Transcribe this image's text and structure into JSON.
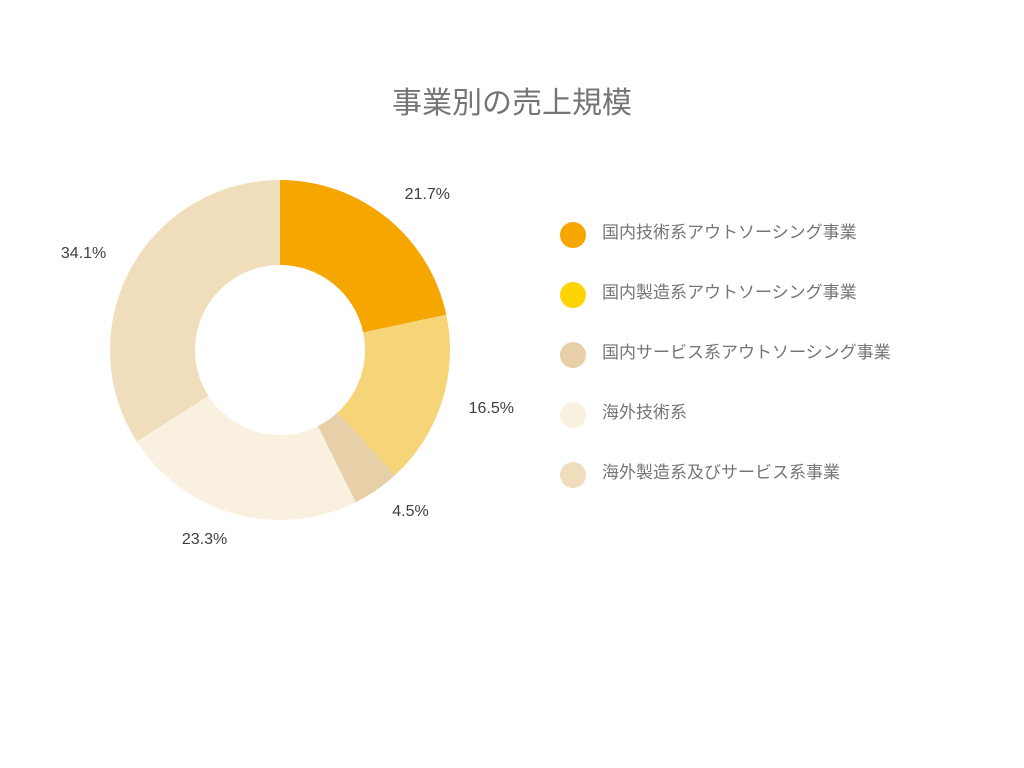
{
  "chart": {
    "type": "donut",
    "title": "事業別の売上規模",
    "title_fontsize": 30,
    "title_color": "#757575",
    "background_color": "#ffffff",
    "inner_radius_ratio": 0.5,
    "start_angle_deg": 0,
    "direction": "clockwise",
    "slices": [
      {
        "label": "国内技術系アウトソーシング事業",
        "value": 21.7,
        "color": "#f6a600",
        "display": "21.7%"
      },
      {
        "label": "国内製造系アウトソーシング事業",
        "value": 16.5,
        "color": "#f5d577",
        "display": "16.5%"
      },
      {
        "label": "国内サービス系アウトソーシング事業",
        "value": 4.5,
        "color": "#e7cfa8",
        "display": "4.5%"
      },
      {
        "label": "海外技術系",
        "value": 23.3,
        "color": "#f9f0e0",
        "display": "23.3%"
      },
      {
        "label": "海外製造系及びサービス系事業",
        "value": 34.1,
        "color": "#f0ddbb",
        "display": "34.1%"
      }
    ],
    "label_fontsize": 16,
    "label_color": "#404040",
    "legend_fontsize": 17,
    "legend_text_color": "#757575",
    "legend_swatch_size": 26,
    "legend_colors": [
      "#f6a600",
      "#fed403",
      "#e7cfa8",
      "#f9f0e0",
      "#f0ddbb"
    ]
  }
}
